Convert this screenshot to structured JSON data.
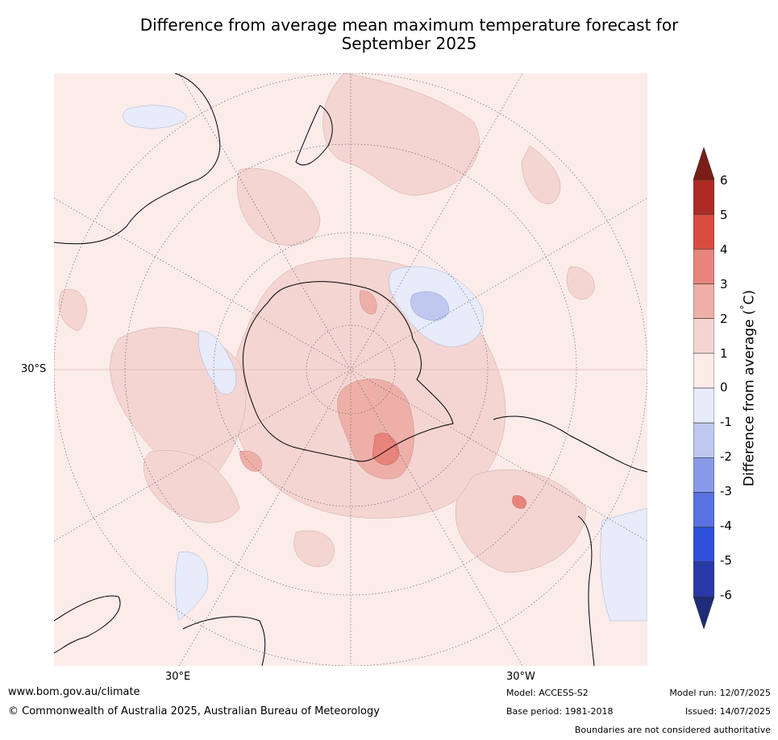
{
  "title_line1": "Difference from average mean maximum temperature forecast for",
  "title_line2": "September 2025",
  "map": {
    "projection": "south-polar-stereographic",
    "lat_label": "30°S",
    "lon_labels": {
      "east": "30°E",
      "west": "30°W"
    }
  },
  "colorbar": {
    "label": "Difference from average (°C)",
    "label_text": "Difference from average (",
    "label_unit": "°C)",
    "ticks": [
      "6",
      "5",
      "4",
      "3",
      "2",
      "1",
      "0",
      "-1",
      "-2",
      "-3",
      "-4",
      "-5",
      "-6"
    ],
    "colors": [
      "#7a1d17",
      "#ad2b24",
      "#d84c40",
      "#e8847c",
      "#eeafa8",
      "#f4d5d1",
      "#fbecea",
      "#e7ebfa",
      "#c1c8f0",
      "#8a9aea",
      "#5a72e2",
      "#2e4fd8",
      "#2839a8",
      "#1f2c7a"
    ]
  },
  "footer": {
    "url": "www.bom.gov.au/climate",
    "copyright": "© Commonwealth of Australia 2025, Australian Bureau of Meteorology",
    "model": "Model: ACCESS-S2",
    "base_period": "Base period: 1981-2018",
    "model_run": "Model run: 12/07/2025",
    "issued": "Issued: 14/07/2025",
    "disclaimer": "Boundaries are not considered authoritative"
  }
}
